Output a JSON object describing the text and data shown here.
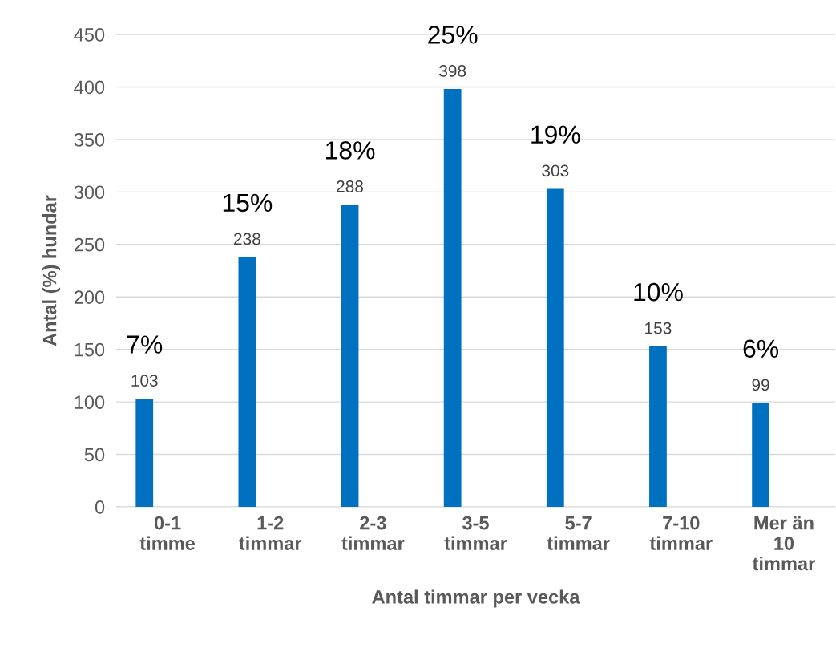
{
  "chart_data": {
    "type": "bar",
    "xlabel": "Antal timmar per vecka",
    "ylabel": "Antal (%) hundar",
    "categories": [
      "0-1\ntimme",
      "1-2\ntimmar",
      "2-3\ntimmar",
      "3-5\ntimmar",
      "5-7\ntimmar",
      "7-10\ntimmar",
      "Mer än\n10\ntimmar"
    ],
    "values": [
      103,
      238,
      288,
      398,
      303,
      153,
      99
    ],
    "color": "#0070c0",
    "data_labels": true,
    "ylim": [
      0,
      450
    ],
    "yticks": [
      0,
      50,
      100,
      150,
      200,
      250,
      300,
      350,
      400,
      450
    ],
    "grid": "y",
    "annotations": [
      "7%",
      "15%",
      "18%",
      "25%",
      "19%",
      "10%",
      "6%"
    ]
  }
}
